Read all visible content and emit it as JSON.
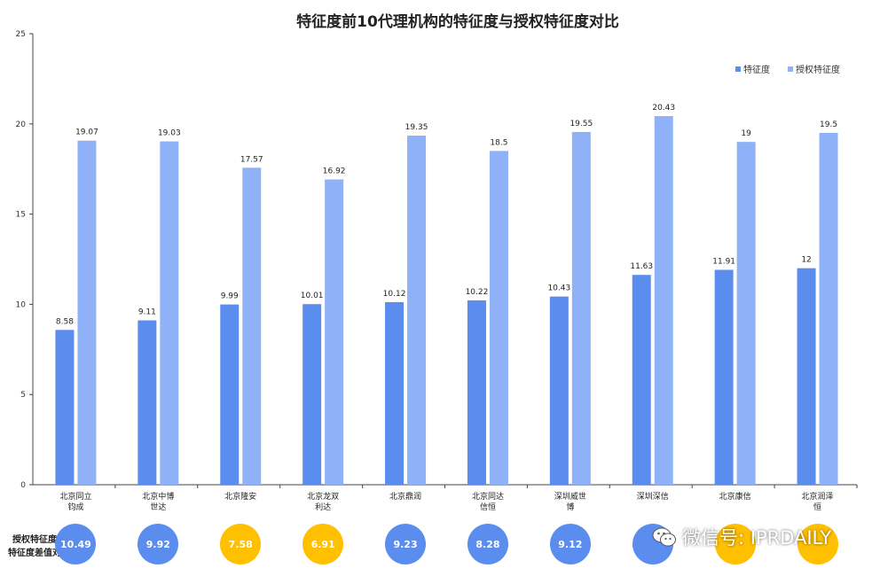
{
  "chart_data": {
    "type": "bar",
    "title": "特征度前10代理机构的特征度与授权特征度对比",
    "categories": [
      [
        "北京同立",
        "钧成"
      ],
      [
        "北京中博",
        "世达"
      ],
      [
        "北京隆安"
      ],
      [
        "北京龙双",
        "利达"
      ],
      [
        "北京鼎润"
      ],
      [
        "北京同达",
        "信恒"
      ],
      [
        "深圳威世",
        "博"
      ],
      [
        "深圳深信"
      ],
      [
        "北京康信"
      ],
      [
        "北京润泽",
        "恒"
      ]
    ],
    "series": [
      {
        "name": "特征度",
        "color": "#5B8DEF",
        "values": [
          8.58,
          9.11,
          9.99,
          10.01,
          10.12,
          10.22,
          10.43,
          11.63,
          11.91,
          12
        ]
      },
      {
        "name": "授权特征度",
        "color": "#8FB1F7",
        "values": [
          19.07,
          19.03,
          17.57,
          16.92,
          19.35,
          18.5,
          19.55,
          20.43,
          19,
          19.5
        ]
      }
    ],
    "ylim": [
      0,
      25
    ],
    "yticks": [
      0,
      5,
      10,
      15,
      20,
      25
    ],
    "legend_position": "top-right",
    "grid": false
  },
  "diff_row": {
    "label_line1": "授权特征度与",
    "label_line2": "特征度差值对比",
    "values": [
      "10.49",
      "9.92",
      "7.58",
      "6.91",
      "9.23",
      "8.28",
      "9.12",
      "",
      "",
      ""
    ],
    "colors": [
      "#5B8DEF",
      "#5B8DEF",
      "#FFC000",
      "#FFC000",
      "#5B8DEF",
      "#5B8DEF",
      "#5B8DEF",
      "#5B8DEF",
      "#FFC000",
      "#FFC000"
    ]
  },
  "watermark": {
    "text": "微信号: IPRDAILY",
    "icon": "wechat-icon"
  }
}
